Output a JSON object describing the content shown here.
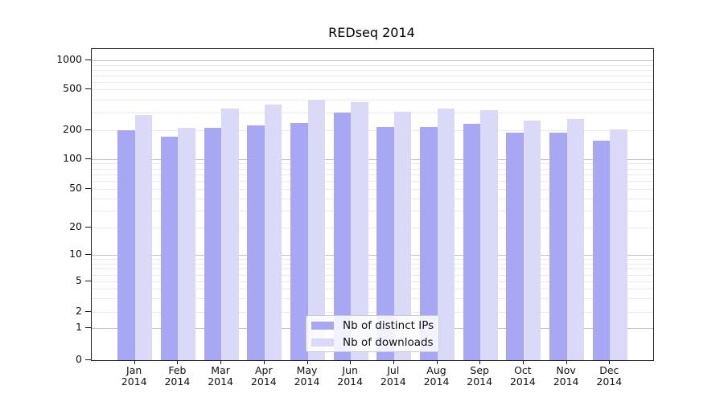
{
  "title": "REDseq 2014",
  "chart_data": {
    "type": "bar",
    "title": "REDseq 2014",
    "categories": [
      "Jan",
      "Feb",
      "Mar",
      "Apr",
      "May",
      "Jun",
      "Jul",
      "Aug",
      "Sep",
      "Oct",
      "Nov",
      "Dec"
    ],
    "x_tick_year": "2014",
    "series": [
      {
        "name": "Nb of distinct IPs",
        "color": "#a7a7f3",
        "values": [
          200,
          170,
          210,
          225,
          235,
          300,
          215,
          215,
          230,
          190,
          190,
          155
        ]
      },
      {
        "name": "Nb of downloads",
        "color": "#dadaf8",
        "values": [
          280,
          210,
          325,
          355,
          400,
          375,
          305,
          325,
          315,
          250,
          260,
          205
        ]
      }
    ],
    "yscale": "symlog",
    "ylim": [
      0,
      1000
    ],
    "yticks": [
      0,
      1,
      2,
      5,
      10,
      20,
      50,
      100,
      200,
      500,
      1000
    ],
    "grid": "horizontal",
    "legend_position": "lower-center"
  },
  "colors": {
    "major_grid": "#c2c2c2",
    "minor_grid": "#eaeaea",
    "axis": "#1a1a1a",
    "background": "#ffffff"
  }
}
